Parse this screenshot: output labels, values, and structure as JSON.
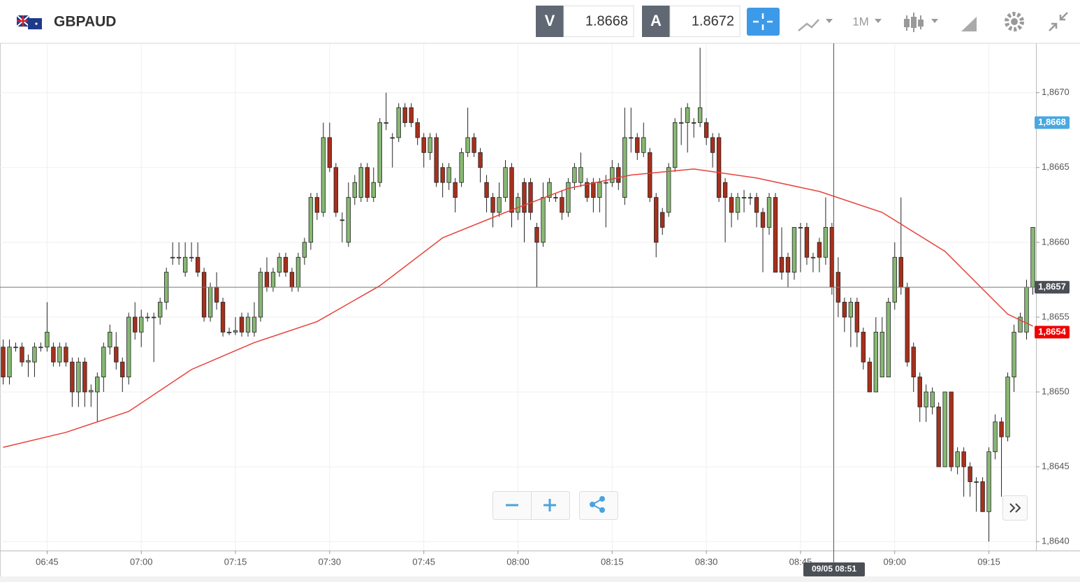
{
  "header": {
    "title": "GBPAUD",
    "sell_label": "V",
    "sell": 1.8668,
    "buy_label": "A",
    "buy": 1.8672,
    "period": "1M"
  },
  "chart_data": {
    "type": "candlestick",
    "up_color": "#88b874",
    "down_color": "#a7301c",
    "xlim": [
      -0.5,
      164.5
    ],
    "ylim": [
      1.86394,
      1.86733
    ],
    "xticks": [
      {
        "value": 7,
        "label": "06:45"
      },
      {
        "value": 22,
        "label": "07:00"
      },
      {
        "value": 37,
        "label": "07:15"
      },
      {
        "value": 52,
        "label": "07:30"
      },
      {
        "value": 67,
        "label": "07:45"
      },
      {
        "value": 82,
        "label": "08:00"
      },
      {
        "value": 97,
        "label": "08:15"
      },
      {
        "value": 112,
        "label": "08:30"
      },
      {
        "value": 127,
        "label": "08:45"
      },
      {
        "value": 142,
        "label": "09:00"
      },
      {
        "value": 157,
        "label": "09:15"
      }
    ],
    "yticks": [
      {
        "value": 1.864,
        "label": "1,8640"
      },
      {
        "value": 1.8645,
        "label": "1,8645"
      },
      {
        "value": 1.865,
        "label": "1,8650"
      },
      {
        "value": 1.8655,
        "label": "1,8655"
      },
      {
        "value": 1.866,
        "label": "1,8660"
      },
      {
        "value": 1.8665,
        "label": "1,8665"
      },
      {
        "value": 1.867,
        "label": "1,8670"
      }
    ],
    "grid": true,
    "open": [
      1.8653,
      1.8651,
      1.8653,
      1.8653,
      1.8652,
      1.8652,
      1.8653,
      1.8653,
      1.8653,
      1.8652,
      1.8653,
      1.8652,
      1.865,
      1.8652,
      1.865,
      1.865,
      1.8651,
      1.8653,
      1.8653,
      1.8652,
      1.8651,
      1.8655,
      1.8654,
      1.8655,
      1.8655,
      1.8655,
      1.8656,
      1.8659,
      1.8659,
      1.8658,
      1.8659,
      1.8659,
      1.8658,
      1.8655,
      1.8657,
      1.8656,
      1.8654,
      1.8654,
      1.8655,
      1.8654,
      1.8654,
      1.8655,
      1.8658,
      1.8657,
      1.8658,
      1.8659,
      1.8658,
      1.8657,
      1.8659,
      1.866,
      1.8663,
      1.8662,
      1.8667,
      1.8665,
      1.86615,
      1.866,
      1.8663,
      1.8663,
      1.8665,
      1.8663,
      1.8664,
      1.8668,
      1.8667,
      1.8667,
      1.8669,
      1.8669,
      1.8668,
      1.8667,
      1.8666,
      1.8667,
      1.8665,
      1.8664,
      1.8664,
      1.8664,
      1.8666,
      1.8667,
      1.8666,
      1.8664,
      1.8663,
      1.8662,
      1.8663,
      1.8665,
      1.8662,
      1.8664,
      1.8664,
      1.8661,
      1.866,
      1.8663,
      1.8663,
      1.8663,
      1.8662,
      1.8664,
      1.8664,
      1.8664,
      1.8664,
      1.8663,
      1.8664,
      1.8664,
      1.8665,
      1.8663,
      1.8667,
      1.8667,
      1.8666,
      1.8666,
      1.8663,
      1.8662,
      1.8662,
      1.8665,
      1.8668,
      1.8668,
      1.8668,
      1.8668,
      1.8668,
      1.8667,
      1.8667,
      1.8664,
      1.8663,
      1.8662,
      1.8663,
      1.8663,
      1.8663,
      1.8662,
      1.8661,
      1.8663,
      1.8659,
      1.8659,
      1.8658,
      1.8661,
      1.8661,
      1.8659,
      1.866,
      1.8659,
      1.8661,
      1.8658,
      1.8656,
      1.8655,
      1.8656,
      1.8654,
      1.8652,
      1.865,
      1.8651,
      1.8651,
      1.8656,
      1.8659,
      1.8657,
      1.8653,
      1.8651,
      1.8649,
      1.8649,
      1.8649,
      1.8645,
      1.865,
      1.8645,
      1.8646,
      1.8645,
      1.8644,
      1.8644,
      1.8642,
      1.8646,
      1.8648,
      1.8647,
      1.8651,
      1.8654,
      1.8654,
      1.8657
    ],
    "high": [
      1.86535,
      1.86535,
      1.86533,
      1.86533,
      1.86525,
      1.86533,
      1.86533,
      1.8656,
      1.86533,
      1.86533,
      1.86533,
      1.86523,
      1.86523,
      1.86523,
      1.86505,
      1.86513,
      1.86533,
      1.86545,
      1.8654,
      1.86523,
      1.86553,
      1.8656,
      1.86555,
      1.86553,
      1.86553,
      1.86563,
      1.86583,
      1.866,
      1.866,
      1.866,
      1.866,
      1.866,
      1.86583,
      1.86573,
      1.8658,
      1.86563,
      1.86543,
      1.8655,
      1.86553,
      1.86553,
      1.8656,
      1.86583,
      1.8659,
      1.86583,
      1.86593,
      1.86593,
      1.86583,
      1.86593,
      1.86603,
      1.86633,
      1.86633,
      1.8668,
      1.8668,
      1.86653,
      1.8662,
      1.8664,
      1.86645,
      1.86653,
      1.86653,
      1.8665,
      1.86683,
      1.867,
      1.86673,
      1.86693,
      1.86693,
      1.86693,
      1.86683,
      1.86673,
      1.86673,
      1.86673,
      1.86653,
      1.86653,
      1.86643,
      1.86663,
      1.8669,
      1.86673,
      1.86663,
      1.86645,
      1.86633,
      1.8664,
      1.86655,
      1.86653,
      1.86633,
      1.86643,
      1.86643,
      1.86613,
      1.8664,
      1.86643,
      1.86633,
      1.86635,
      1.86643,
      1.86653,
      1.8666,
      1.86643,
      1.86643,
      1.86643,
      1.86645,
      1.86655,
      1.86653,
      1.8669,
      1.8669,
      1.86673,
      1.8668,
      1.86663,
      1.86633,
      1.86623,
      1.86653,
      1.86683,
      1.8669,
      1.86693,
      1.86683,
      1.8673,
      1.86683,
      1.86673,
      1.86673,
      1.86643,
      1.86633,
      1.86633,
      1.86635,
      1.86633,
      1.86633,
      1.86623,
      1.86633,
      1.86633,
      1.8661,
      1.86593,
      1.8661,
      1.86613,
      1.86613,
      1.86593,
      1.86603,
      1.8663,
      1.86613,
      1.8659,
      1.86563,
      1.86563,
      1.86563,
      1.86543,
      1.86523,
      1.8655,
      1.8655,
      1.86563,
      1.866,
      1.8663,
      1.86573,
      1.86533,
      1.86513,
      1.86505,
      1.86503,
      1.86493,
      1.865,
      1.865,
      1.86463,
      1.86463,
      1.86453,
      1.86443,
      1.86443,
      1.86463,
      1.86485,
      1.86483,
      1.86513,
      1.86545,
      1.86553,
      1.86575,
      1.8661
    ],
    "low": [
      1.86505,
      1.86505,
      1.86527,
      1.86517,
      1.8651,
      1.8651,
      1.86527,
      1.86527,
      1.86517,
      1.86517,
      1.86517,
      1.8649,
      1.8649,
      1.8649,
      1.8649,
      1.8648,
      1.865,
      1.86525,
      1.86515,
      1.865,
      1.86505,
      1.86535,
      1.8653,
      1.86547,
      1.8652,
      1.86545,
      1.86555,
      1.86585,
      1.86585,
      1.86577,
      1.86587,
      1.86577,
      1.86547,
      1.86547,
      1.86555,
      1.86537,
      1.86538,
      1.86538,
      1.86537,
      1.86537,
      1.86537,
      1.86547,
      1.86567,
      1.86567,
      1.86577,
      1.86577,
      1.86567,
      1.86567,
      1.86585,
      1.86595,
      1.86615,
      1.86617,
      1.86647,
      1.86617,
      1.866,
      1.86597,
      1.86625,
      1.86627,
      1.86627,
      1.86627,
      1.86637,
      1.86675,
      1.8665,
      1.86667,
      1.86677,
      1.86677,
      1.86665,
      1.8665,
      1.86655,
      1.86637,
      1.8663,
      1.86635,
      1.8662,
      1.86637,
      1.86657,
      1.86657,
      1.8664,
      1.8662,
      1.8661,
      1.86617,
      1.86627,
      1.8661,
      1.86615,
      1.866,
      1.86615,
      1.8657,
      1.86597,
      1.86627,
      1.86627,
      1.86615,
      1.86617,
      1.86635,
      1.86637,
      1.86627,
      1.8662,
      1.8662,
      1.8661,
      1.86637,
      1.86635,
      1.86625,
      1.8666,
      1.86655,
      1.86657,
      1.86627,
      1.8659,
      1.86605,
      1.86617,
      1.86647,
      1.86665,
      1.8666,
      1.8667,
      1.86677,
      1.86665,
      1.8665,
      1.86627,
      1.866,
      1.8661,
      1.86615,
      1.8662,
      1.86625,
      1.8661,
      1.8658,
      1.86605,
      1.8658,
      1.86575,
      1.8657,
      1.86575,
      1.8658,
      1.86585,
      1.8658,
      1.8658,
      1.86585,
      1.86565,
      1.8655,
      1.8654,
      1.8653,
      1.8653,
      1.86515,
      1.865,
      1.865,
      1.8651,
      1.8651,
      1.86555,
      1.86565,
      1.86517,
      1.865,
      1.8648,
      1.8648,
      1.86485,
      1.8645,
      1.8645,
      1.86447,
      1.86445,
      1.8643,
      1.8643,
      1.8642,
      1.8642,
      1.864,
      1.86455,
      1.8643,
      1.86467,
      1.865,
      1.8654,
      1.86535,
      1.86565
    ],
    "close": [
      1.8651,
      1.8653,
      1.8653,
      1.8652,
      1.86521,
      1.8653,
      1.8653,
      1.8654,
      1.8652,
      1.8653,
      1.8652,
      1.865,
      1.8652,
      1.865,
      1.86501,
      1.8651,
      1.8653,
      1.8654,
      1.8652,
      1.8651,
      1.8655,
      1.8654,
      1.8655,
      1.8655,
      1.8655,
      1.8656,
      1.8658,
      1.8659,
      1.8659,
      1.8659,
      1.8659,
      1.8658,
      1.8655,
      1.8657,
      1.8656,
      1.8654,
      1.8654,
      1.86541,
      1.8654,
      1.8655,
      1.8655,
      1.8658,
      1.8657,
      1.8658,
      1.8659,
      1.8658,
      1.8657,
      1.8659,
      1.866,
      1.8663,
      1.8662,
      1.8667,
      1.8665,
      1.8662,
      1.86615,
      1.8663,
      1.8664,
      1.8665,
      1.8663,
      1.8664,
      1.8668,
      1.8668,
      1.8667,
      1.8669,
      1.8668,
      1.8668,
      1.8667,
      1.8666,
      1.8667,
      1.8664,
      1.8664,
      1.8665,
      1.8663,
      1.8666,
      1.8667,
      1.8666,
      1.8665,
      1.8663,
      1.8662,
      1.8663,
      1.8665,
      1.8662,
      1.8663,
      1.8662,
      1.8662,
      1.866,
      1.8663,
      1.8664,
      1.8663,
      1.8662,
      1.8664,
      1.8665,
      1.8665,
      1.8663,
      1.8663,
      1.8664,
      1.8664,
      1.8665,
      1.8664,
      1.8667,
      1.8667,
      1.8666,
      1.8667,
      1.8663,
      1.866,
      1.8661,
      1.8665,
      1.8668,
      1.8668,
      1.8669,
      1.8668,
      1.8669,
      1.8667,
      1.8666,
      1.8663,
      1.8663,
      1.8662,
      1.8663,
      1.8663,
      1.8663,
      1.8662,
      1.8661,
      1.8663,
      1.8658,
      1.8658,
      1.8658,
      1.8661,
      1.8661,
      1.8659,
      1.8659,
      1.8659,
      1.8661,
      1.8657,
      1.8656,
      1.8655,
      1.8656,
      1.8654,
      1.8652,
      1.865,
      1.8654,
      1.8654,
      1.8656,
      1.8659,
      1.8657,
      1.8652,
      1.8651,
      1.8649,
      1.865,
      1.865,
      1.8645,
      1.865,
      1.8645,
      1.8646,
      1.8645,
      1.8644,
      1.8644,
      1.8642,
      1.8646,
      1.8648,
      1.8647,
      1.8651,
      1.8654,
      1.8655,
      1.8657,
      1.8661
    ],
    "line": {
      "color": "#e8413a",
      "x": [
        0,
        10,
        20,
        30,
        40,
        50,
        60,
        70,
        80,
        90,
        100,
        110,
        120,
        130,
        140,
        150,
        160,
        164
      ],
      "values": [
        1.86463,
        1.86473,
        1.86487,
        1.86515,
        1.86533,
        1.86547,
        1.86571,
        1.86603,
        1.8662,
        1.86636,
        1.86645,
        1.86649,
        1.86643,
        1.86634,
        1.8662,
        1.86594,
        1.86552,
        1.86544
      ]
    },
    "price_labels": [
      {
        "value": 1.8668,
        "label": "1,8668",
        "color": "#4aa8e0"
      },
      {
        "value": 1.8657,
        "label": "1,8657",
        "color": "#4b4f56"
      },
      {
        "value": 1.8654,
        "label": "1,8654",
        "color": "#f00000"
      }
    ],
    "crosshair_label": "09/05 08:51"
  }
}
